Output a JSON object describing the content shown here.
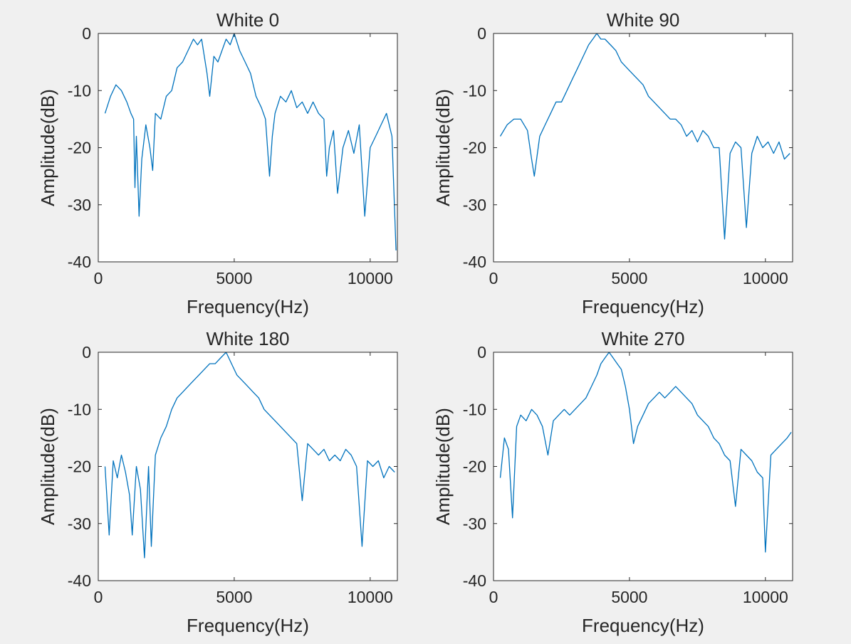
{
  "colors": {
    "figure_background": "#f0f0f0",
    "axes_background": "#ffffff",
    "axis_color": "#262626",
    "series_color": "#0072bd"
  },
  "chart_data": [
    {
      "type": "line",
      "title": "White 0",
      "xlabel": "Frequency(Hz)",
      "ylabel": "Amplitude(dB)",
      "xlim": [
        0,
        11000
      ],
      "ylim": [
        -40,
        0
      ],
      "xticks": [
        0,
        5000,
        10000
      ],
      "xtick_labels": [
        "0",
        "5000",
        "10000"
      ],
      "yticks": [
        0,
        -10,
        -20,
        -30,
        -40
      ],
      "ytick_labels": [
        "0",
        "-10",
        "-20",
        "-30",
        "-40"
      ],
      "grid": false,
      "legend": "none",
      "series": [
        {
          "x": [
            250,
            450,
            650,
            850,
            1050,
            1200,
            1300,
            1350,
            1400,
            1500,
            1600,
            1750,
            1900,
            2000,
            2100,
            2300,
            2500,
            2700,
            2900,
            3100,
            3300,
            3500,
            3650,
            3800,
            3900,
            4000,
            4100,
            4250,
            4400,
            4550,
            4700,
            4850,
            5000,
            5200,
            5400,
            5600,
            5800,
            6000,
            6150,
            6300,
            6400,
            6500,
            6700,
            6900,
            7100,
            7300,
            7500,
            7700,
            7900,
            8100,
            8300,
            8400,
            8500,
            8650,
            8800,
            9000,
            9200,
            9400,
            9600,
            9800,
            10000,
            10200,
            10400,
            10600,
            10800,
            10950
          ],
          "y": [
            -14,
            -11,
            -9,
            -10,
            -12,
            -14,
            -15,
            -27,
            -18,
            -32,
            -22,
            -16,
            -20,
            -24,
            -14,
            -15,
            -11,
            -10,
            -6,
            -5,
            -3,
            -1,
            -2,
            -1,
            -4,
            -7,
            -11,
            -4,
            -5,
            -3,
            -1,
            -2,
            0,
            -3,
            -5,
            -7,
            -11,
            -13,
            -15,
            -25,
            -18,
            -14,
            -11,
            -12,
            -10,
            -13,
            -12,
            -14,
            -12,
            -14,
            -15,
            -25,
            -20,
            -17,
            -28,
            -20,
            -17,
            -21,
            -16,
            -32,
            -20,
            -18,
            -16,
            -14,
            -18,
            -38
          ]
        }
      ]
    },
    {
      "type": "line",
      "title": "White 90",
      "xlabel": "Frequency(Hz)",
      "ylabel": "Amplitude(dB)",
      "xlim": [
        0,
        11000
      ],
      "ylim": [
        -40,
        0
      ],
      "xticks": [
        0,
        5000,
        10000
      ],
      "xtick_labels": [
        "0",
        "5000",
        "10000"
      ],
      "yticks": [
        0,
        -10,
        -20,
        -30,
        -40
      ],
      "ytick_labels": [
        "0",
        "-10",
        "-20",
        "-30",
        "-40"
      ],
      "grid": false,
      "legend": "none",
      "series": [
        {
          "x": [
            250,
            500,
            750,
            1000,
            1250,
            1400,
            1500,
            1700,
            1900,
            2100,
            2300,
            2500,
            2700,
            2900,
            3100,
            3300,
            3500,
            3650,
            3800,
            3950,
            4100,
            4300,
            4500,
            4700,
            4900,
            5100,
            5300,
            5500,
            5700,
            5900,
            6100,
            6300,
            6500,
            6700,
            6900,
            7100,
            7300,
            7500,
            7700,
            7900,
            8100,
            8300,
            8500,
            8700,
            8900,
            9100,
            9300,
            9500,
            9700,
            9900,
            10100,
            10300,
            10500,
            10700,
            10900
          ],
          "y": [
            -18,
            -16,
            -15,
            -15,
            -17,
            -22,
            -25,
            -18,
            -16,
            -14,
            -12,
            -12,
            -10,
            -8,
            -6,
            -4,
            -2,
            -1,
            0,
            -1,
            -1,
            -2,
            -3,
            -5,
            -6,
            -7,
            -8,
            -9,
            -11,
            -12,
            -13,
            -14,
            -15,
            -15,
            -16,
            -18,
            -17,
            -19,
            -17,
            -18,
            -20,
            -20,
            -36,
            -21,
            -19,
            -20,
            -34,
            -21,
            -18,
            -20,
            -19,
            -21,
            -19,
            -22,
            -21
          ]
        }
      ]
    },
    {
      "type": "line",
      "title": "White 180",
      "xlabel": "Frequency(Hz)",
      "ylabel": "Amplitude(dB)",
      "xlim": [
        0,
        11000
      ],
      "ylim": [
        -40,
        0
      ],
      "xticks": [
        0,
        5000,
        10000
      ],
      "xtick_labels": [
        "0",
        "5000",
        "10000"
      ],
      "yticks": [
        0,
        -10,
        -20,
        -30,
        -40
      ],
      "ytick_labels": [
        "0",
        "-10",
        "-20",
        "-30",
        "-40"
      ],
      "grid": false,
      "legend": "none",
      "series": [
        {
          "x": [
            250,
            400,
            550,
            700,
            850,
            1000,
            1150,
            1250,
            1400,
            1550,
            1700,
            1850,
            1950,
            2100,
            2300,
            2500,
            2700,
            2900,
            3100,
            3300,
            3500,
            3700,
            3900,
            4100,
            4300,
            4500,
            4700,
            4900,
            5100,
            5300,
            5500,
            5700,
            5900,
            6100,
            6300,
            6500,
            6700,
            6900,
            7100,
            7300,
            7500,
            7700,
            7900,
            8100,
            8300,
            8500,
            8700,
            8900,
            9100,
            9300,
            9500,
            9700,
            9900,
            10100,
            10300,
            10500,
            10700,
            10900
          ],
          "y": [
            -20,
            -32,
            -19,
            -22,
            -18,
            -21,
            -25,
            -32,
            -20,
            -24,
            -36,
            -20,
            -34,
            -18,
            -15,
            -13,
            -10,
            -8,
            -7,
            -6,
            -5,
            -4,
            -3,
            -2,
            -2,
            -1,
            0,
            -2,
            -4,
            -5,
            -6,
            -7,
            -8,
            -10,
            -11,
            -12,
            -13,
            -14,
            -15,
            -16,
            -26,
            -16,
            -17,
            -18,
            -17,
            -19,
            -18,
            -19,
            -17,
            -18,
            -20,
            -34,
            -19,
            -20,
            -19,
            -22,
            -20,
            -21
          ]
        }
      ]
    },
    {
      "type": "line",
      "title": "White 270",
      "xlabel": "Frequency(Hz)",
      "ylabel": "Amplitude(dB)",
      "xlim": [
        0,
        11000
      ],
      "ylim": [
        -40,
        0
      ],
      "xticks": [
        0,
        5000,
        10000
      ],
      "xtick_labels": [
        "0",
        "5000",
        "10000"
      ],
      "yticks": [
        0,
        -10,
        -20,
        -30,
        -40
      ],
      "ytick_labels": [
        "0",
        "-10",
        "-20",
        "-30",
        "-40"
      ],
      "grid": false,
      "legend": "none",
      "series": [
        {
          "x": [
            250,
            400,
            550,
            700,
            850,
            1000,
            1200,
            1400,
            1600,
            1800,
            2000,
            2200,
            2400,
            2600,
            2800,
            3000,
            3200,
            3400,
            3600,
            3800,
            3950,
            4100,
            4250,
            4400,
            4550,
            4700,
            4850,
            5000,
            5150,
            5300,
            5500,
            5700,
            5900,
            6100,
            6300,
            6500,
            6700,
            6900,
            7100,
            7300,
            7500,
            7700,
            7900,
            8100,
            8300,
            8500,
            8700,
            8900,
            9100,
            9300,
            9500,
            9700,
            9900,
            10000,
            10200,
            10400,
            10600,
            10800,
            10950
          ],
          "y": [
            -22,
            -15,
            -17,
            -29,
            -13,
            -11,
            -12,
            -10,
            -11,
            -13,
            -18,
            -12,
            -11,
            -10,
            -11,
            -10,
            -9,
            -8,
            -6,
            -4,
            -2,
            -1,
            0,
            -1,
            -2,
            -3,
            -6,
            -10,
            -16,
            -13,
            -11,
            -9,
            -8,
            -7,
            -8,
            -7,
            -6,
            -7,
            -8,
            -9,
            -11,
            -12,
            -13,
            -15,
            -16,
            -18,
            -19,
            -27,
            -17,
            -18,
            -19,
            -21,
            -22,
            -35,
            -18,
            -17,
            -16,
            -15,
            -14
          ]
        }
      ]
    }
  ]
}
